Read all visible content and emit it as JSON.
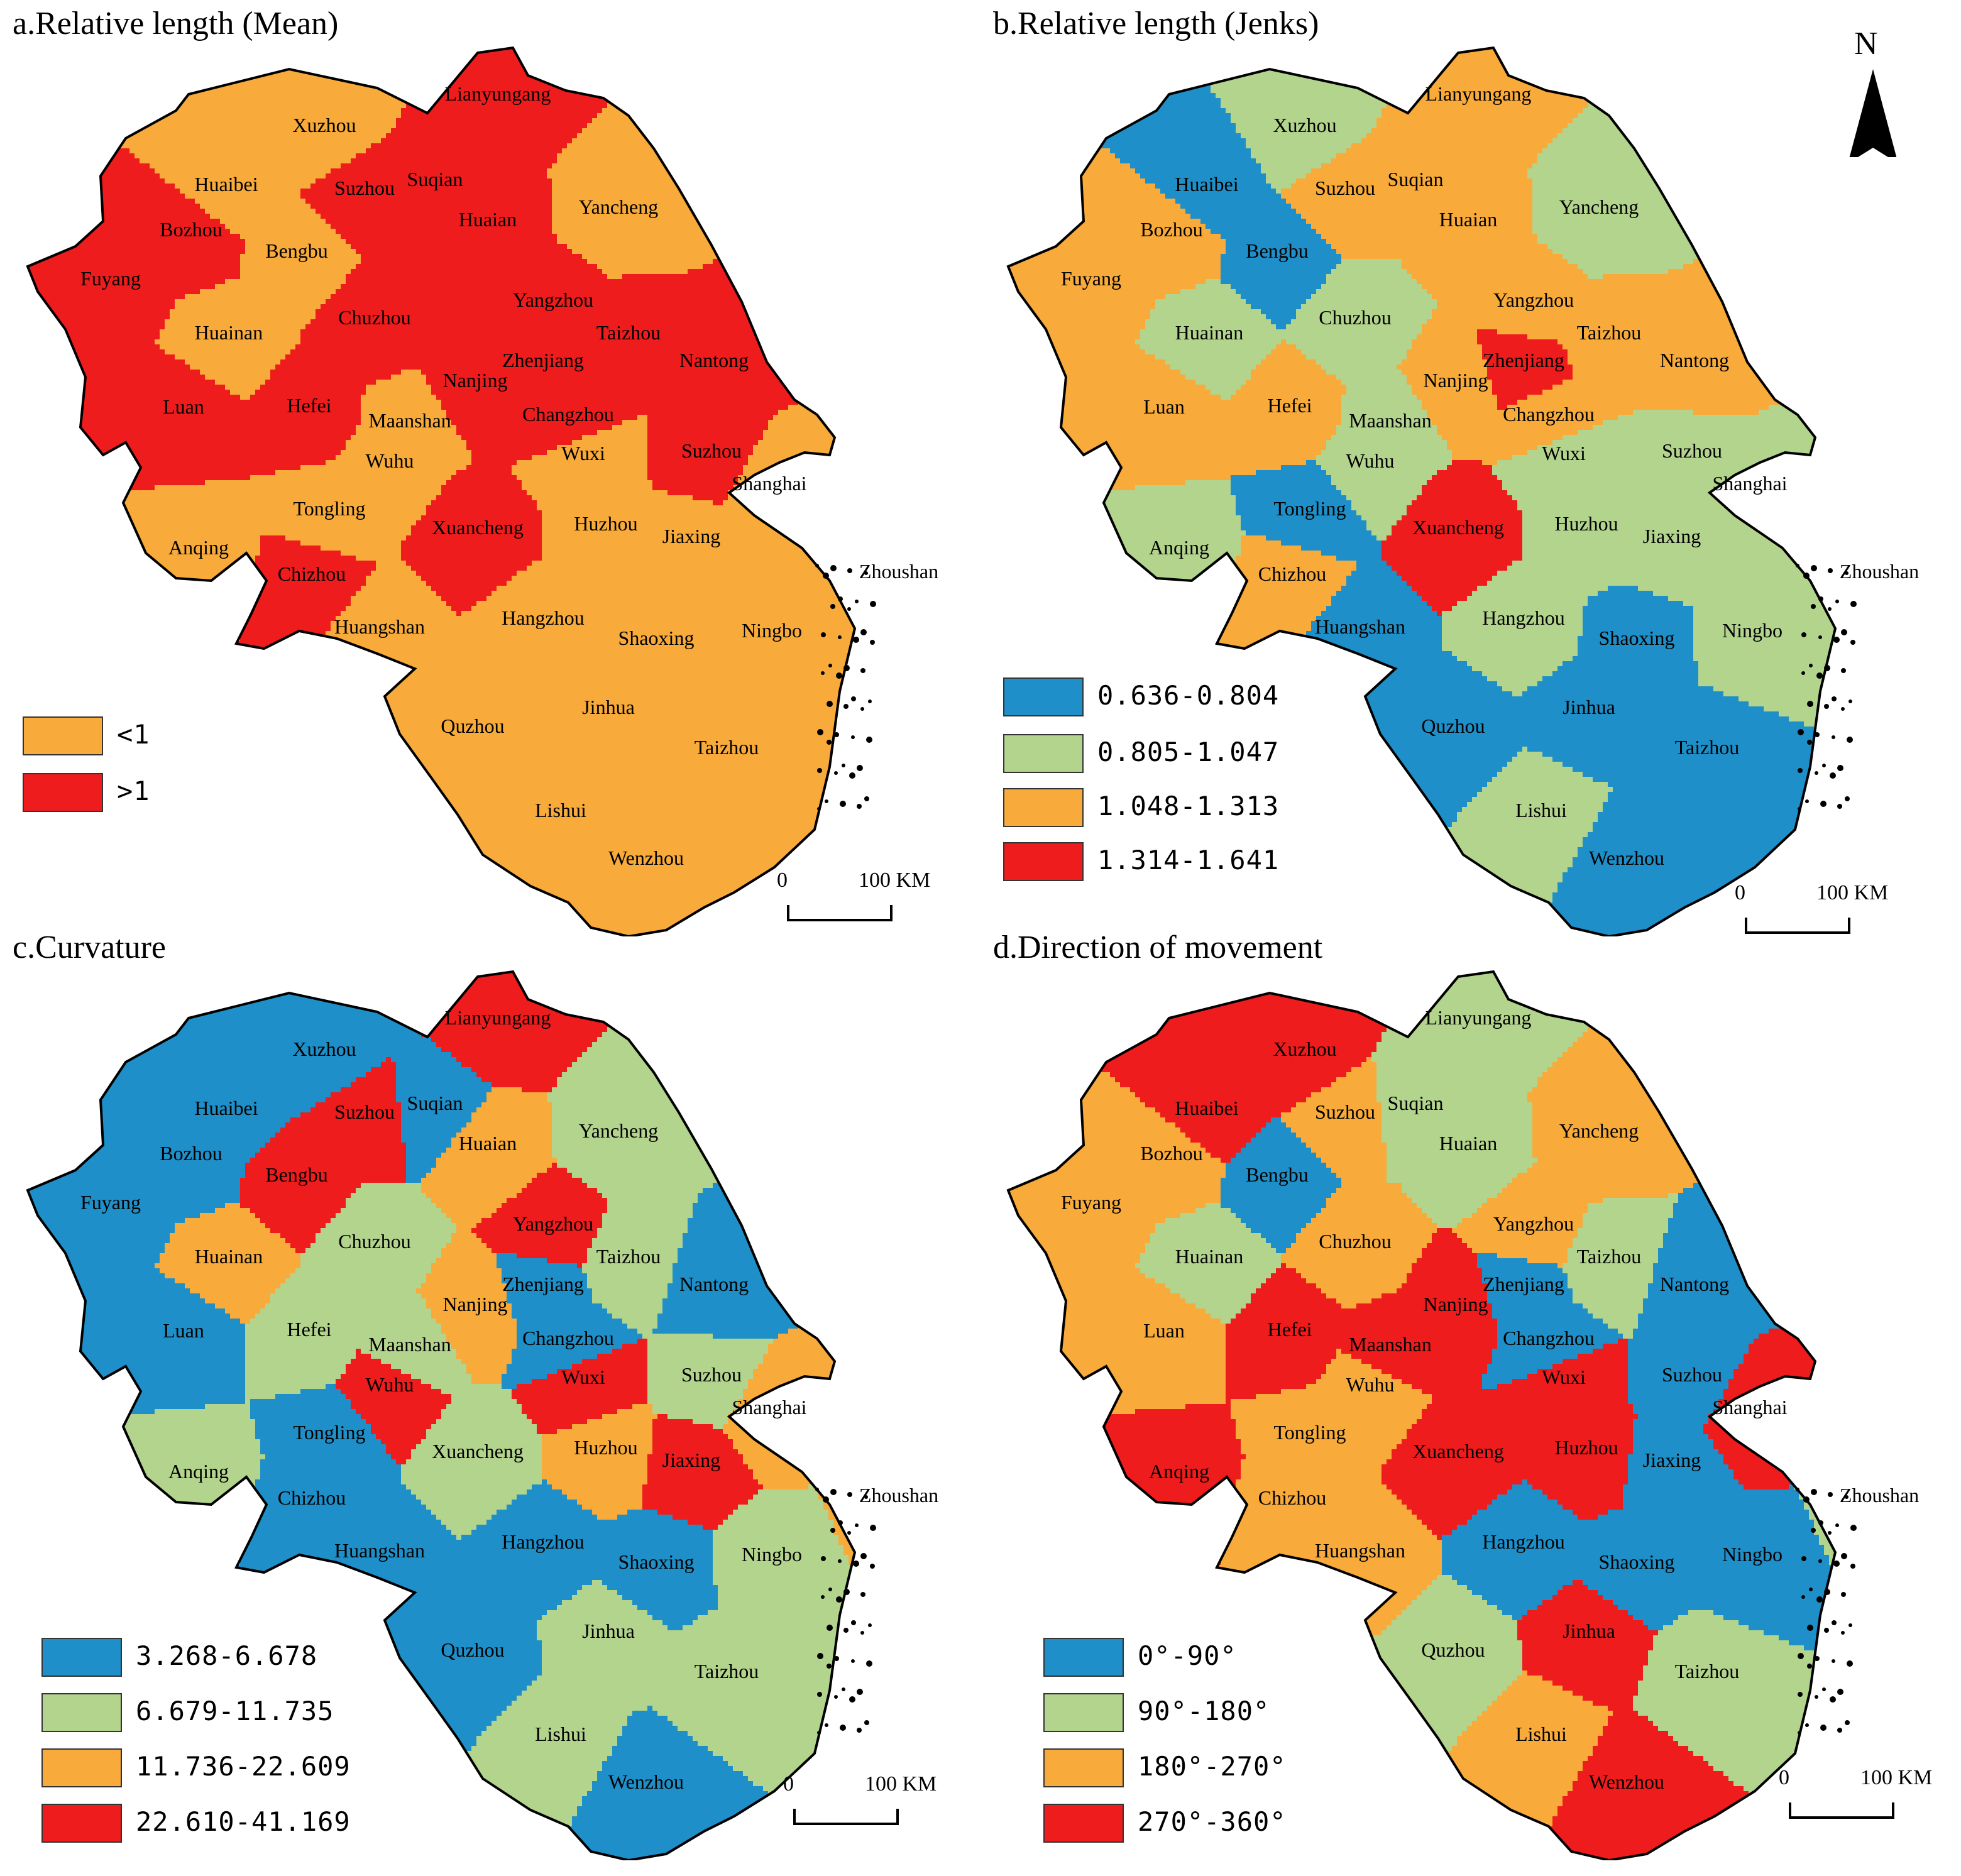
{
  "north_arrow": {
    "letter": "N"
  },
  "panels": [
    {
      "title": "a.Relative length (Mean)",
      "legend": [
        {
          "label": "<1",
          "color": "#F8AA3A"
        },
        {
          "label": ">1",
          "color": "#EE1C1C"
        }
      ],
      "scale": {
        "zero": "0",
        "max": "100 KM"
      },
      "cities": [
        {
          "name": "Xuzhou",
          "class": 0
        },
        {
          "name": "Lianyungang",
          "class": 1
        },
        {
          "name": "Huaibei",
          "class": 0
        },
        {
          "name": "Suzhou",
          "class": 1
        },
        {
          "name": "Suqian",
          "class": 1
        },
        {
          "name": "Bozhou",
          "class": 1
        },
        {
          "name": "Bengbu",
          "class": 0
        },
        {
          "name": "Huaian",
          "class": 1
        },
        {
          "name": "Yancheng",
          "class": 0
        },
        {
          "name": "Fuyang",
          "class": 1
        },
        {
          "name": "Huainan",
          "class": 0
        },
        {
          "name": "Chuzhou",
          "class": 1
        },
        {
          "name": "Yangzhou",
          "class": 1
        },
        {
          "name": "Taizhou",
          "class": 1
        },
        {
          "name": "Nantong",
          "class": 1
        },
        {
          "name": "Zhenjiang",
          "class": 1
        },
        {
          "name": "Nanjing",
          "class": 1
        },
        {
          "name": "Luan",
          "class": 1
        },
        {
          "name": "Hefei",
          "class": 1
        },
        {
          "name": "Maanshan",
          "class": 0
        },
        {
          "name": "Changzhou",
          "class": 1
        },
        {
          "name": "Wuxi",
          "class": 0
        },
        {
          "name": "Suzhou",
          "class": 1
        },
        {
          "name": "Wuhu",
          "class": 0
        },
        {
          "name": "Shanghai",
          "class": 0
        },
        {
          "name": "Tongling",
          "class": 0
        },
        {
          "name": "Anqing",
          "class": 0
        },
        {
          "name": "Chizhou",
          "class": 1
        },
        {
          "name": "Xuancheng",
          "class": 1
        },
        {
          "name": "Huzhou",
          "class": 0
        },
        {
          "name": "Jiaxing",
          "class": 0
        },
        {
          "name": "Zhoushan",
          "class": 0
        },
        {
          "name": "Huangshan",
          "class": 0
        },
        {
          "name": "Hangzhou",
          "class": 0
        },
        {
          "name": "Shaoxing",
          "class": 0
        },
        {
          "name": "Ningbo",
          "class": 0
        },
        {
          "name": "Jinhua",
          "class": 0
        },
        {
          "name": "Quzhou",
          "class": 0
        },
        {
          "name": "Taizhou",
          "class": 0
        },
        {
          "name": "Lishui",
          "class": 0
        },
        {
          "name": "Wenzhou",
          "class": 0
        }
      ]
    },
    {
      "title": "b.Relative length (Jenks)",
      "legend": [
        {
          "label": "0.636-0.804",
          "color": "#1E8FC8"
        },
        {
          "label": "0.805-1.047",
          "color": "#B3D48D"
        },
        {
          "label": "1.048-1.313",
          "color": "#F8AA3A"
        },
        {
          "label": "1.314-1.641",
          "color": "#EE1C1C"
        }
      ],
      "scale": {
        "zero": "0",
        "max": "100 KM"
      },
      "cities": [
        {
          "name": "Xuzhou",
          "class": 1
        },
        {
          "name": "Lianyungang",
          "class": 2
        },
        {
          "name": "Huaibei",
          "class": 0
        },
        {
          "name": "Suzhou",
          "class": 2
        },
        {
          "name": "Suqian",
          "class": 2
        },
        {
          "name": "Bozhou",
          "class": 2
        },
        {
          "name": "Bengbu",
          "class": 0
        },
        {
          "name": "Huaian",
          "class": 2
        },
        {
          "name": "Yancheng",
          "class": 1
        },
        {
          "name": "Fuyang",
          "class": 2
        },
        {
          "name": "Huainan",
          "class": 1
        },
        {
          "name": "Chuzhou",
          "class": 1
        },
        {
          "name": "Yangzhou",
          "class": 2
        },
        {
          "name": "Taizhou",
          "class": 2
        },
        {
          "name": "Nantong",
          "class": 2
        },
        {
          "name": "Zhenjiang",
          "class": 3
        },
        {
          "name": "Nanjing",
          "class": 2
        },
        {
          "name": "Luan",
          "class": 2
        },
        {
          "name": "Hefei",
          "class": 2
        },
        {
          "name": "Maanshan",
          "class": 1
        },
        {
          "name": "Changzhou",
          "class": 2
        },
        {
          "name": "Wuxi",
          "class": 1
        },
        {
          "name": "Suzhou",
          "class": 1
        },
        {
          "name": "Wuhu",
          "class": 1
        },
        {
          "name": "Shanghai",
          "class": 1
        },
        {
          "name": "Tongling",
          "class": 0
        },
        {
          "name": "Anqing",
          "class": 1
        },
        {
          "name": "Chizhou",
          "class": 2
        },
        {
          "name": "Xuancheng",
          "class": 3
        },
        {
          "name": "Huzhou",
          "class": 1
        },
        {
          "name": "Jiaxing",
          "class": 1
        },
        {
          "name": "Zhoushan",
          "class": 1
        },
        {
          "name": "Huangshan",
          "class": 0
        },
        {
          "name": "Hangzhou",
          "class": 1
        },
        {
          "name": "Shaoxing",
          "class": 0
        },
        {
          "name": "Ningbo",
          "class": 1
        },
        {
          "name": "Jinhua",
          "class": 0
        },
        {
          "name": "Quzhou",
          "class": 0
        },
        {
          "name": "Taizhou",
          "class": 0
        },
        {
          "name": "Lishui",
          "class": 1
        },
        {
          "name": "Wenzhou",
          "class": 0
        }
      ]
    },
    {
      "title": "c.Curvature",
      "legend": [
        {
          "label": "3.268-6.678",
          "color": "#1E8FC8"
        },
        {
          "label": "6.679-11.735",
          "color": "#B3D48D"
        },
        {
          "label": "11.736-22.609",
          "color": "#F8AA3A"
        },
        {
          "label": "22.610-41.169",
          "color": "#EE1C1C"
        }
      ],
      "scale": {
        "zero": "0",
        "max": "100 KM"
      },
      "cities": [
        {
          "name": "Xuzhou",
          "class": 0
        },
        {
          "name": "Lianyungang",
          "class": 3
        },
        {
          "name": "Huaibei",
          "class": 0
        },
        {
          "name": "Suzhou",
          "class": 3
        },
        {
          "name": "Suqian",
          "class": 0
        },
        {
          "name": "Bozhou",
          "class": 0
        },
        {
          "name": "Bengbu",
          "class": 3
        },
        {
          "name": "Huaian",
          "class": 2
        },
        {
          "name": "Yancheng",
          "class": 1
        },
        {
          "name": "Fuyang",
          "class": 0
        },
        {
          "name": "Huainan",
          "class": 2
        },
        {
          "name": "Chuzhou",
          "class": 1
        },
        {
          "name": "Yangzhou",
          "class": 3
        },
        {
          "name": "Taizhou",
          "class": 1
        },
        {
          "name": "Nantong",
          "class": 0
        },
        {
          "name": "Zhenjiang",
          "class": 0
        },
        {
          "name": "Nanjing",
          "class": 2
        },
        {
          "name": "Luan",
          "class": 0
        },
        {
          "name": "Hefei",
          "class": 1
        },
        {
          "name": "Maanshan",
          "class": 1
        },
        {
          "name": "Changzhou",
          "class": 0
        },
        {
          "name": "Wuxi",
          "class": 3
        },
        {
          "name": "Suzhou",
          "class": 1
        },
        {
          "name": "Wuhu",
          "class": 3
        },
        {
          "name": "Shanghai",
          "class": 2
        },
        {
          "name": "Tongling",
          "class": 0
        },
        {
          "name": "Anqing",
          "class": 1
        },
        {
          "name": "Chizhou",
          "class": 0
        },
        {
          "name": "Xuancheng",
          "class": 1
        },
        {
          "name": "Huzhou",
          "class": 2
        },
        {
          "name": "Jiaxing",
          "class": 3
        },
        {
          "name": "Zhoushan",
          "class": 2
        },
        {
          "name": "Huangshan",
          "class": 0
        },
        {
          "name": "Hangzhou",
          "class": 0
        },
        {
          "name": "Shaoxing",
          "class": 0
        },
        {
          "name": "Ningbo",
          "class": 1
        },
        {
          "name": "Jinhua",
          "class": 1
        },
        {
          "name": "Quzhou",
          "class": 0
        },
        {
          "name": "Taizhou",
          "class": 1
        },
        {
          "name": "Lishui",
          "class": 1
        },
        {
          "name": "Wenzhou",
          "class": 0
        }
      ]
    },
    {
      "title": "d.Direction of movement",
      "legend": [
        {
          "label": "0°-90°",
          "color": "#1E8FC8"
        },
        {
          "label": "90°-180°",
          "color": "#B3D48D"
        },
        {
          "label": "180°-270°",
          "color": "#F8AA3A"
        },
        {
          "label": "270°-360°",
          "color": "#EE1C1C"
        }
      ],
      "scale": {
        "zero": "0",
        "max": "100 KM"
      },
      "cities": [
        {
          "name": "Xuzhou",
          "class": 3
        },
        {
          "name": "Lianyungang",
          "class": 1
        },
        {
          "name": "Huaibei",
          "class": 3
        },
        {
          "name": "Suzhou",
          "class": 2
        },
        {
          "name": "Suqian",
          "class": 1
        },
        {
          "name": "Bozhou",
          "class": 2
        },
        {
          "name": "Bengbu",
          "class": 0
        },
        {
          "name": "Huaian",
          "class": 1
        },
        {
          "name": "Yancheng",
          "class": 2
        },
        {
          "name": "Fuyang",
          "class": 2
        },
        {
          "name": "Huainan",
          "class": 1
        },
        {
          "name": "Chuzhou",
          "class": 2
        },
        {
          "name": "Yangzhou",
          "class": 2
        },
        {
          "name": "Taizhou",
          "class": 1
        },
        {
          "name": "Nantong",
          "class": 0
        },
        {
          "name": "Zhenjiang",
          "class": 0
        },
        {
          "name": "Nanjing",
          "class": 3
        },
        {
          "name": "Luan",
          "class": 2
        },
        {
          "name": "Hefei",
          "class": 3
        },
        {
          "name": "Maanshan",
          "class": 3
        },
        {
          "name": "Changzhou",
          "class": 0
        },
        {
          "name": "Wuxi",
          "class": 3
        },
        {
          "name": "Suzhou",
          "class": 0
        },
        {
          "name": "Wuhu",
          "class": 2
        },
        {
          "name": "Shanghai",
          "class": 3
        },
        {
          "name": "Tongling",
          "class": 2
        },
        {
          "name": "Anqing",
          "class": 3
        },
        {
          "name": "Chizhou",
          "class": 2
        },
        {
          "name": "Xuancheng",
          "class": 3
        },
        {
          "name": "Huzhou",
          "class": 3
        },
        {
          "name": "Jiaxing",
          "class": 0
        },
        {
          "name": "Zhoushan",
          "class": 1
        },
        {
          "name": "Huangshan",
          "class": 2
        },
        {
          "name": "Hangzhou",
          "class": 0
        },
        {
          "name": "Shaoxing",
          "class": 0
        },
        {
          "name": "Ningbo",
          "class": 0
        },
        {
          "name": "Jinhua",
          "class": 3
        },
        {
          "name": "Quzhou",
          "class": 1
        },
        {
          "name": "Taizhou",
          "class": 1
        },
        {
          "name": "Lishui",
          "class": 2
        },
        {
          "name": "Wenzhou",
          "class": 3
        }
      ]
    }
  ]
}
